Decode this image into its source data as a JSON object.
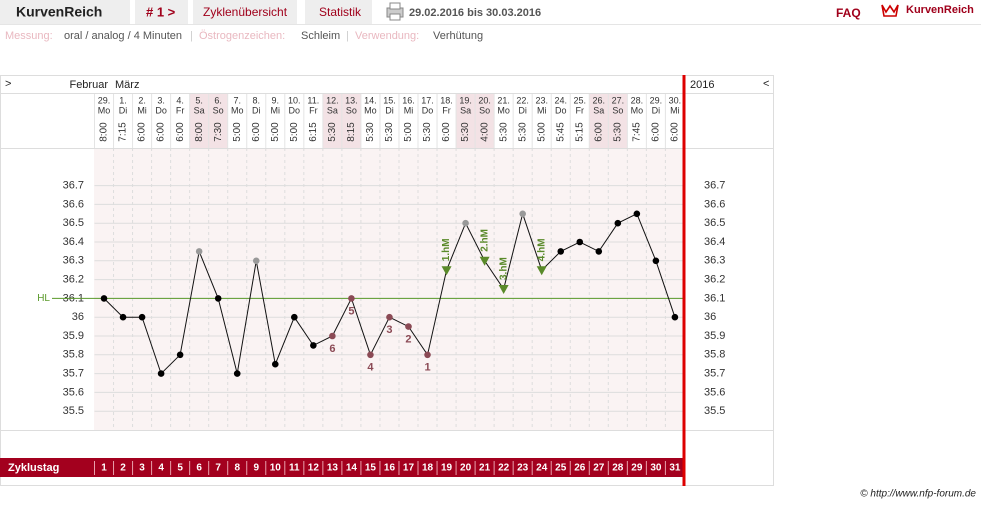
{
  "header": {
    "app_title": "KurvenReich",
    "cycle_nav": "# 1 >",
    "tabs": [
      "Zyklenübersicht",
      "Statistik"
    ],
    "date_range": "29.02.2016 bis 30.03.2016",
    "faq": "FAQ",
    "logo": "KurvenReich"
  },
  "settings_line": {
    "separator": "|",
    "items": [
      {
        "label": "Messung:",
        "value": "oral / analog / 4 Minuten"
      },
      {
        "label": "Östrogenzeichen:",
        "value": "Schleim"
      },
      {
        "label": "Verwendung:",
        "value": "Verhütung"
      }
    ]
  },
  "chart_data": {
    "type": "line",
    "nav_left": ">",
    "nav_right": "<",
    "months": [
      "Februar",
      "März"
    ],
    "year": "2016",
    "row_label": "Zyklustag",
    "categories": [
      1,
      2,
      3,
      4,
      5,
      6,
      7,
      8,
      9,
      10,
      11,
      12,
      13,
      14,
      15,
      16,
      17,
      18,
      19,
      20,
      21,
      22,
      23,
      24,
      25,
      26,
      27,
      28,
      29,
      30,
      31
    ],
    "dates": [
      "29.",
      "1.",
      "2.",
      "3.",
      "4.",
      "5.",
      "6.",
      "7.",
      "8.",
      "9.",
      "10.",
      "11.",
      "12.",
      "13.",
      "14.",
      "15.",
      "16.",
      "17.",
      "18.",
      "19.",
      "20.",
      "21.",
      "22.",
      "23.",
      "24.",
      "25.",
      "26.",
      "27.",
      "28.",
      "29.",
      "30."
    ],
    "weekdays": [
      "Mo",
      "Di",
      "Mi",
      "Do",
      "Fr",
      "Sa",
      "So",
      "Mo",
      "Di",
      "Mi",
      "Do",
      "Fr",
      "Sa",
      "So",
      "Mo",
      "Di",
      "Mi",
      "Do",
      "Fr",
      "Sa",
      "So",
      "Mo",
      "Di",
      "Mi",
      "Do",
      "Fr",
      "Sa",
      "So",
      "Mo",
      "Di",
      "Mi"
    ],
    "times": [
      "8:00",
      "7:15",
      "6:00",
      "6:00",
      "6:00",
      "8:00",
      "7:30",
      "5:00",
      "6:00",
      "5:00",
      "5:00",
      "6:15",
      "5:30",
      "8:15",
      "5:30",
      "5:30",
      "5:00",
      "5:30",
      "6:00",
      "5:30",
      "4:00",
      "5:30",
      "5:30",
      "5:00",
      "5:45",
      "5:15",
      "6:00",
      "5:30",
      "7:45",
      "6:00",
      "6:00"
    ],
    "weekend_days": [
      6,
      7,
      13,
      14,
      20,
      21,
      27,
      28
    ],
    "values": [
      36.1,
      36,
      36,
      35.7,
      35.8,
      36.35,
      36.1,
      35.7,
      36.3,
      35.75,
      36,
      35.85,
      35.9,
      36.1,
      35.8,
      36,
      35.95,
      35.8,
      36.25,
      36.5,
      36.3,
      36.15,
      36.55,
      36.25,
      36.35,
      36.4,
      36.35,
      36.5,
      36.55,
      36.3,
      36
    ],
    "point_colors": [
      "#000",
      "#000",
      "#000",
      "#000",
      "#000",
      "#999",
      "#000",
      "#000",
      "#999",
      "#000",
      "#000",
      "#000",
      "#8b4a55",
      "#8b4a55",
      "#8b4a55",
      "#8b4a55",
      "#8b4a55",
      "#8b4a55",
      "#5a8a2a",
      "#999",
      "#5a8a2a",
      "#5a8a2a",
      "#999",
      "#5a8a2a",
      "#000",
      "#000",
      "#000",
      "#000",
      "#000",
      "#000",
      "#000"
    ],
    "point_markers": [
      "circle",
      "circle",
      "circle",
      "circle",
      "circle",
      "circle",
      "circle",
      "circle",
      "circle",
      "circle",
      "circle",
      "circle",
      "circle",
      "circle",
      "circle",
      "circle",
      "circle",
      "circle",
      "triangle",
      "circle",
      "triangle",
      "triangle",
      "circle",
      "triangle",
      "circle",
      "circle",
      "circle",
      "circle",
      "circle",
      "circle",
      "circle"
    ],
    "point_labels": [
      null,
      null,
      null,
      null,
      null,
      null,
      null,
      null,
      null,
      null,
      null,
      null,
      "6",
      "5",
      "4",
      "3",
      "2",
      "1",
      "1.hM",
      null,
      "2.hM",
      "3.hM",
      null,
      "4.hM",
      null,
      null,
      null,
      null,
      null,
      null,
      null
    ],
    "line_color": "#111",
    "hl": {
      "label": "HL",
      "value": 36.1,
      "color": "#5a9a2a"
    },
    "ylim": [
      35.4,
      36.9
    ],
    "yticks": [
      35.5,
      35.6,
      35.7,
      35.8,
      35.9,
      36,
      36.1,
      36.2,
      36.3,
      36.4,
      36.5,
      36.6,
      36.7
    ],
    "grid": true
  },
  "footer": "© http://www.nfp-forum.de"
}
